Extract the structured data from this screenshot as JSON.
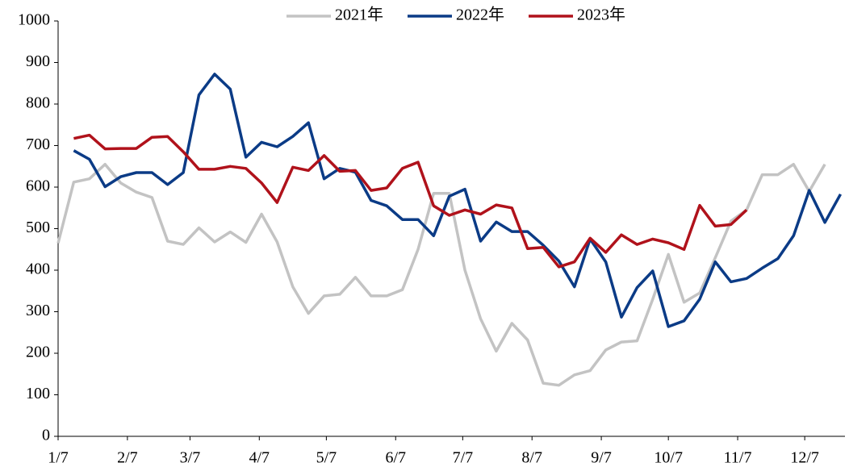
{
  "chart_data": {
    "type": "line",
    "x": [
      0,
      7,
      14,
      21,
      28,
      35,
      42,
      49,
      56,
      63,
      70,
      77,
      84,
      91,
      98,
      105,
      112,
      119,
      126,
      133,
      140,
      147,
      154,
      161,
      168,
      175,
      182,
      189,
      196,
      203,
      210,
      217,
      224,
      231,
      238,
      245,
      252,
      259,
      266,
      273,
      280,
      287,
      294,
      301,
      308,
      315,
      322,
      329,
      336,
      343,
      350
    ],
    "xlim": [
      0,
      352
    ],
    "xticks": [
      {
        "value": 0,
        "label": "1/7"
      },
      {
        "value": 31,
        "label": "2/7"
      },
      {
        "value": 59,
        "label": "3/7"
      },
      {
        "value": 90,
        "label": "4/7"
      },
      {
        "value": 120,
        "label": "5/7"
      },
      {
        "value": 151,
        "label": "6/7"
      },
      {
        "value": 181,
        "label": "7/7"
      },
      {
        "value": 212,
        "label": "8/7"
      },
      {
        "value": 243,
        "label": "9/7"
      },
      {
        "value": 273,
        "label": "10/7"
      },
      {
        "value": 304,
        "label": "11/7"
      },
      {
        "value": 334,
        "label": "12/7"
      }
    ],
    "ylim": [
      0,
      1000
    ],
    "yticks": [
      0,
      100,
      200,
      300,
      400,
      500,
      600,
      700,
      800,
      900,
      1000
    ],
    "legend": "top",
    "series": [
      {
        "name": "2021年",
        "color": "#c3c3c3",
        "values": [
          465,
          612,
          620,
          655,
          610,
          588,
          575,
          470,
          462,
          502,
          468,
          492,
          467,
          535,
          468,
          360,
          296,
          338,
          342,
          383,
          338,
          338,
          353,
          450,
          585,
          585,
          400,
          283,
          205,
          272,
          232,
          128,
          123,
          148,
          158,
          208,
          227,
          230,
          330,
          438,
          323,
          345,
          430,
          518,
          545,
          630,
          630,
          655,
          590,
          655,
          null
        ]
      },
      {
        "name": "2022年",
        "color": "#0b3b86",
        "values": [
          null,
          688,
          667,
          601,
          625,
          635,
          635,
          606,
          635,
          822,
          872,
          836,
          672,
          708,
          697,
          722,
          755,
          620,
          645,
          636,
          568,
          555,
          522,
          522,
          483,
          578,
          595,
          470,
          516,
          493,
          493,
          460,
          422,
          360,
          475,
          420,
          287,
          358,
          398,
          264,
          278,
          330,
          420,
          372,
          380,
          405,
          428,
          483,
          592,
          515,
          583
        ]
      },
      {
        "name": "2023年",
        "color": "#b0121b",
        "values": [
          null,
          717,
          725,
          692,
          693,
          693,
          720,
          722,
          685,
          643,
          643,
          650,
          645,
          610,
          563,
          648,
          640,
          676,
          638,
          640,
          592,
          598,
          645,
          660,
          555,
          532,
          545,
          535,
          557,
          550,
          452,
          455,
          408,
          420,
          477,
          443,
          485,
          462,
          475,
          466,
          450,
          556,
          506,
          510,
          545,
          null,
          null,
          null,
          null,
          null,
          null
        ]
      }
    ]
  }
}
